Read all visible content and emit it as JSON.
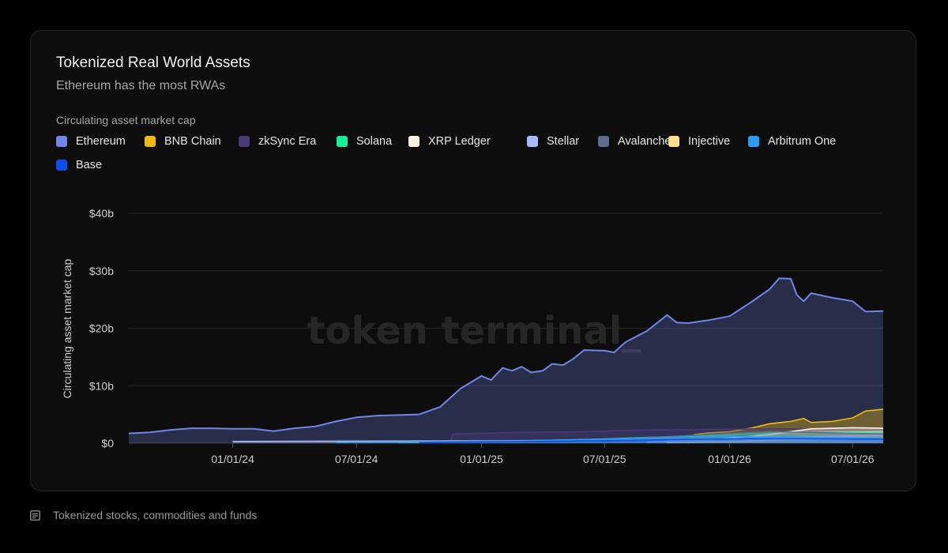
{
  "card": {
    "title": "Tokenized Real World Assets",
    "subtitle": "Ethereum has the most RWAs",
    "legend_title": "Circulating asset market cap",
    "watermark": "token terminal_"
  },
  "footer": {
    "note": "Tokenized stocks, commodities and funds",
    "icon": "note-icon"
  },
  "chart_data": {
    "type": "area",
    "stacked": false,
    "ylabel": "Circulating asset market cap",
    "y_unit": "billion USD",
    "ylim": [
      0,
      40
    ],
    "yticks": [
      {
        "value": 0,
        "label": "$0"
      },
      {
        "value": 10,
        "label": "$10b"
      },
      {
        "value": 20,
        "label": "$20b"
      },
      {
        "value": 30,
        "label": "$30b"
      },
      {
        "value": 40,
        "label": "$40b"
      }
    ],
    "xlim": [
      "2023-08-01",
      "2026-08-15"
    ],
    "xticks": [
      {
        "value": "2024-01-01",
        "label": "01/01/24"
      },
      {
        "value": "2024-07-01",
        "label": "07/01/24"
      },
      {
        "value": "2025-01-01",
        "label": "01/01/25"
      },
      {
        "value": "2025-07-01",
        "label": "07/01/25"
      },
      {
        "value": "2026-01-01",
        "label": "01/01/26"
      },
      {
        "value": "2026-07-01",
        "label": "07/01/26"
      }
    ],
    "grid": "horizontal",
    "legend_position": "top-left",
    "series": [
      {
        "name": "Ethereum",
        "color": "#6f86e8",
        "points": [
          [
            "2023-08-01",
            1.7
          ],
          [
            "2023-09-01",
            1.9
          ],
          [
            "2023-10-01",
            2.3
          ],
          [
            "2023-11-01",
            2.6
          ],
          [
            "2023-12-01",
            2.6
          ],
          [
            "2024-01-01",
            2.5
          ],
          [
            "2024-02-01",
            2.5
          ],
          [
            "2024-03-01",
            2.1
          ],
          [
            "2024-04-01",
            2.6
          ],
          [
            "2024-05-01",
            2.9
          ],
          [
            "2024-06-01",
            3.8
          ],
          [
            "2024-07-01",
            4.5
          ],
          [
            "2024-08-01",
            4.8
          ],
          [
            "2024-09-01",
            4.9
          ],
          [
            "2024-10-01",
            5.0
          ],
          [
            "2024-11-01",
            6.3
          ],
          [
            "2024-12-01",
            9.5
          ],
          [
            "2025-01-01",
            11.7
          ],
          [
            "2025-01-15",
            11.0
          ],
          [
            "2025-02-01",
            13.1
          ],
          [
            "2025-02-15",
            12.6
          ],
          [
            "2025-03-01",
            13.3
          ],
          [
            "2025-03-15",
            12.3
          ],
          [
            "2025-04-01",
            12.6
          ],
          [
            "2025-04-15",
            13.8
          ],
          [
            "2025-05-01",
            13.6
          ],
          [
            "2025-05-15",
            14.6
          ],
          [
            "2025-06-01",
            16.2
          ],
          [
            "2025-07-01",
            16.1
          ],
          [
            "2025-07-15",
            15.8
          ],
          [
            "2025-08-01",
            17.6
          ],
          [
            "2025-09-01",
            19.5
          ],
          [
            "2025-10-01",
            22.3
          ],
          [
            "2025-10-15",
            21.0
          ],
          [
            "2025-11-01",
            20.9
          ],
          [
            "2025-12-01",
            21.4
          ],
          [
            "2026-01-01",
            22.1
          ],
          [
            "2026-02-01",
            24.5
          ],
          [
            "2026-03-01",
            26.8
          ],
          [
            "2026-03-15",
            28.7
          ],
          [
            "2026-04-01",
            28.6
          ],
          [
            "2026-04-10",
            25.8
          ],
          [
            "2026-04-20",
            24.7
          ],
          [
            "2026-05-01",
            26.1
          ],
          [
            "2026-06-01",
            25.3
          ],
          [
            "2026-07-01",
            24.7
          ],
          [
            "2026-07-20",
            22.9
          ],
          [
            "2026-08-15",
            23.0
          ]
        ]
      },
      {
        "name": "BNB Chain",
        "color": "#f0b90b",
        "points": [
          [
            "2025-11-01",
            0.0
          ],
          [
            "2025-11-10",
            1.5
          ],
          [
            "2025-12-01",
            1.8
          ],
          [
            "2026-01-01",
            2.0
          ],
          [
            "2026-02-01",
            2.6
          ],
          [
            "2026-03-01",
            3.4
          ],
          [
            "2026-04-01",
            3.8
          ],
          [
            "2026-04-20",
            4.3
          ],
          [
            "2026-05-01",
            3.6
          ],
          [
            "2026-06-01",
            3.8
          ],
          [
            "2026-07-01",
            4.4
          ],
          [
            "2026-07-20",
            5.6
          ],
          [
            "2026-08-15",
            5.9
          ]
        ]
      },
      {
        "name": "zkSync Era",
        "color": "#4b3a7a",
        "points": [
          [
            "2024-11-15",
            0.0
          ],
          [
            "2024-11-20",
            1.6
          ],
          [
            "2025-01-01",
            1.7
          ],
          [
            "2025-03-01",
            1.9
          ],
          [
            "2025-06-01",
            2.0
          ],
          [
            "2025-09-01",
            2.3
          ],
          [
            "2025-12-01",
            2.4
          ],
          [
            "2026-03-01",
            2.5
          ],
          [
            "2026-06-01",
            2.4
          ],
          [
            "2026-08-15",
            2.4
          ]
        ]
      },
      {
        "name": "Solana",
        "color": "#14f195",
        "points": [
          [
            "2024-09-01",
            0.1
          ],
          [
            "2025-01-01",
            0.3
          ],
          [
            "2025-06-01",
            0.6
          ],
          [
            "2025-09-01",
            1.0
          ],
          [
            "2025-12-01",
            1.3
          ],
          [
            "2026-03-01",
            1.8
          ],
          [
            "2026-06-01",
            1.9
          ],
          [
            "2026-08-15",
            2.0
          ]
        ]
      },
      {
        "name": "XRP Ledger",
        "color": "#fff3e0",
        "points": [
          [
            "2025-09-01",
            0.2
          ],
          [
            "2025-12-01",
            0.6
          ],
          [
            "2026-03-01",
            1.5
          ],
          [
            "2026-05-01",
            2.5
          ],
          [
            "2026-07-01",
            2.7
          ],
          [
            "2026-08-15",
            2.6
          ]
        ]
      },
      {
        "name": "Stellar",
        "color": "#a9bbff",
        "points": [
          [
            "2024-01-01",
            0.3
          ],
          [
            "2025-01-01",
            0.4
          ],
          [
            "2025-09-01",
            0.6
          ],
          [
            "2026-01-01",
            0.8
          ],
          [
            "2026-04-01",
            1.0
          ],
          [
            "2026-08-15",
            1.4
          ]
        ]
      },
      {
        "name": "Avalanche",
        "color": "#5c6d8f",
        "points": [
          [
            "2025-03-01",
            0.3
          ],
          [
            "2025-08-01",
            0.8
          ],
          [
            "2025-12-01",
            1.5
          ],
          [
            "2026-03-01",
            2.0
          ],
          [
            "2026-06-01",
            1.8
          ],
          [
            "2026-08-15",
            1.6
          ]
        ]
      },
      {
        "name": "Injective",
        "color": "#ffe08a",
        "points": [
          [
            "2025-10-01",
            0.1
          ],
          [
            "2026-01-01",
            0.3
          ],
          [
            "2026-04-01",
            0.6
          ],
          [
            "2026-08-15",
            0.8
          ]
        ]
      },
      {
        "name": "Arbitrum One",
        "color": "#2b9ef0",
        "points": [
          [
            "2024-06-01",
            0.1
          ],
          [
            "2025-03-01",
            0.4
          ],
          [
            "2025-09-01",
            0.9
          ],
          [
            "2026-01-01",
            1.2
          ],
          [
            "2026-05-01",
            1.0
          ],
          [
            "2026-08-15",
            0.9
          ]
        ]
      },
      {
        "name": "Base",
        "color": "#0a4df0",
        "points": [
          [
            "2024-10-01",
            0.1
          ],
          [
            "2025-04-01",
            0.3
          ],
          [
            "2025-10-01",
            0.6
          ],
          [
            "2026-02-01",
            0.8
          ],
          [
            "2026-08-15",
            0.7
          ]
        ]
      }
    ]
  }
}
